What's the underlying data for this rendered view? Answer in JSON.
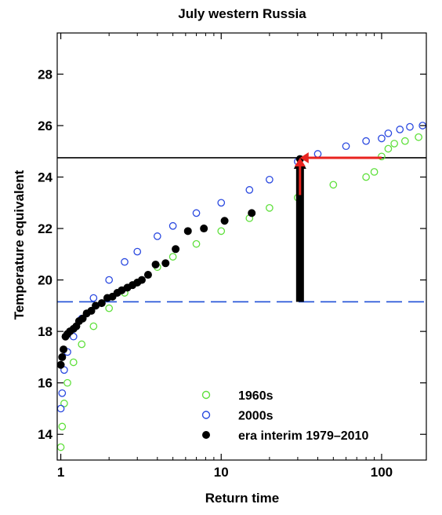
{
  "chart_data": {
    "type": "scatter",
    "title": "July western Russia",
    "xlabel": "Return time",
    "ylabel": "Temperature equivalent",
    "xscale": "log",
    "xlim": [
      0.95,
      190
    ],
    "ylim": [
      13,
      29.6
    ],
    "xticks": [
      {
        "v": 1,
        "label": "1"
      },
      {
        "v": 10,
        "label": "10"
      },
      {
        "v": 100,
        "label": "100"
      }
    ],
    "yticks": [
      {
        "v": 14,
        "label": "14"
      },
      {
        "v": 16,
        "label": "16"
      },
      {
        "v": 18,
        "label": "18"
      },
      {
        "v": 20,
        "label": "20"
      },
      {
        "v": 22,
        "label": "22"
      },
      {
        "v": 24,
        "label": "24"
      },
      {
        "v": 26,
        "label": "26"
      },
      {
        "v": 28,
        "label": "28"
      }
    ],
    "legend_position": "bottom-right",
    "reference_lines": [
      {
        "orientation": "horizontal",
        "y": 24.75,
        "style": "solid",
        "color": "#000000"
      },
      {
        "orientation": "horizontal",
        "y": 19.15,
        "style": "dashed",
        "color": "#1f4fd6"
      }
    ],
    "arrows": [
      {
        "color": "#000000",
        "from": [
          31,
          19.15
        ],
        "to": [
          31,
          24.75
        ],
        "width": "thick"
      },
      {
        "color": "#e8231f",
        "from": [
          31,
          23.3
        ],
        "to": [
          31,
          24.75
        ],
        "width": "thin"
      },
      {
        "color": "#e8231f",
        "from": [
          100,
          24.75
        ],
        "to": [
          31,
          24.75
        ],
        "width": "thin"
      }
    ],
    "series": [
      {
        "name": "1960s",
        "color": "#5fe03c",
        "marker": "open-circle",
        "points": [
          [
            1.0,
            13.5
          ],
          [
            1.02,
            14.3
          ],
          [
            1.05,
            15.2
          ],
          [
            1.1,
            16.0
          ],
          [
            1.2,
            16.8
          ],
          [
            1.35,
            17.5
          ],
          [
            1.6,
            18.2
          ],
          [
            2.0,
            18.9
          ],
          [
            2.5,
            19.5
          ],
          [
            3.0,
            19.9
          ],
          [
            4.0,
            20.5
          ],
          [
            5.0,
            20.9
          ],
          [
            7.0,
            21.4
          ],
          [
            10.0,
            21.9
          ],
          [
            15.0,
            22.4
          ],
          [
            20.0,
            22.8
          ],
          [
            30.0,
            23.2
          ],
          [
            50.0,
            23.7
          ],
          [
            80.0,
            24.0
          ],
          [
            90.0,
            24.2
          ],
          [
            100.0,
            24.8
          ],
          [
            110.0,
            25.1
          ],
          [
            120.0,
            25.3
          ],
          [
            140.0,
            25.4
          ],
          [
            170.0,
            25.55
          ]
        ]
      },
      {
        "name": "2000s",
        "color": "#2a49e0",
        "marker": "open-circle",
        "points": [
          [
            1.0,
            15.0
          ],
          [
            1.02,
            15.6
          ],
          [
            1.05,
            16.5
          ],
          [
            1.1,
            17.2
          ],
          [
            1.2,
            17.8
          ],
          [
            1.35,
            18.5
          ],
          [
            1.6,
            19.3
          ],
          [
            2.0,
            20.0
          ],
          [
            2.5,
            20.7
          ],
          [
            3.0,
            21.1
          ],
          [
            4.0,
            21.7
          ],
          [
            5.0,
            22.1
          ],
          [
            7.0,
            22.6
          ],
          [
            10.0,
            23.0
          ],
          [
            15.0,
            23.5
          ],
          [
            20.0,
            23.9
          ],
          [
            30.0,
            24.6
          ],
          [
            40.0,
            24.9
          ],
          [
            60.0,
            25.2
          ],
          [
            80.0,
            25.4
          ],
          [
            100.0,
            25.5
          ],
          [
            110.0,
            25.7
          ],
          [
            130.0,
            25.85
          ],
          [
            150.0,
            25.95
          ],
          [
            180.0,
            26.0
          ]
        ]
      },
      {
        "name": "era interim 1979–2010",
        "color": "#000000",
        "marker": "filled-circle",
        "points": [
          [
            1.0,
            16.7
          ],
          [
            1.02,
            17.0
          ],
          [
            1.04,
            17.3
          ],
          [
            1.07,
            17.8
          ],
          [
            1.1,
            17.9
          ],
          [
            1.14,
            18.0
          ],
          [
            1.2,
            18.1
          ],
          [
            1.25,
            18.2
          ],
          [
            1.3,
            18.4
          ],
          [
            1.37,
            18.5
          ],
          [
            1.45,
            18.7
          ],
          [
            1.55,
            18.8
          ],
          [
            1.65,
            19.0
          ],
          [
            1.8,
            19.1
          ],
          [
            1.95,
            19.3
          ],
          [
            2.1,
            19.35
          ],
          [
            2.25,
            19.5
          ],
          [
            2.4,
            19.6
          ],
          [
            2.6,
            19.7
          ],
          [
            2.8,
            19.8
          ],
          [
            3.0,
            19.9
          ],
          [
            3.2,
            20.0
          ],
          [
            3.5,
            20.2
          ],
          [
            3.9,
            20.6
          ],
          [
            4.5,
            20.65
          ],
          [
            5.2,
            21.2
          ],
          [
            6.2,
            21.9
          ],
          [
            7.8,
            22.0
          ],
          [
            10.5,
            22.3
          ],
          [
            15.5,
            22.6
          ],
          [
            31.0,
            24.7
          ]
        ]
      }
    ]
  }
}
